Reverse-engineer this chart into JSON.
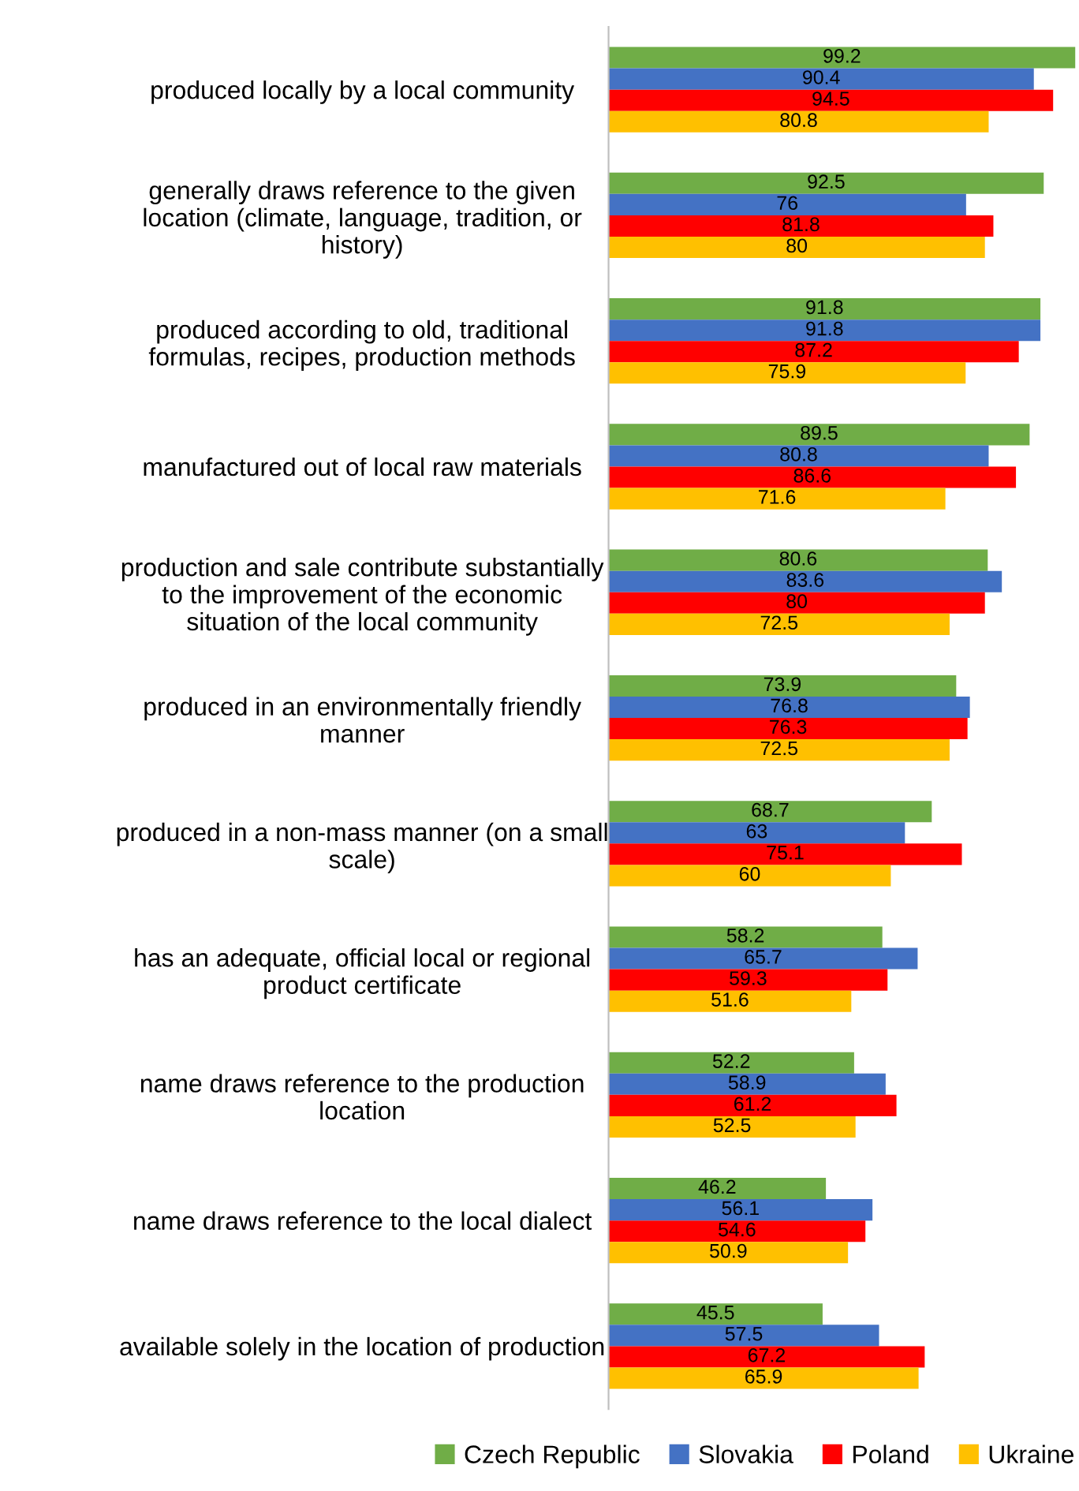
{
  "chart_data": {
    "type": "bar",
    "orientation": "horizontal",
    "categories": [
      "produced locally by a local community",
      "generally draws reference to the given\nlocation (climate, language, tradition, or\nhistory)",
      "produced according to old, traditional\nformulas, recipes, production methods",
      "manufactured out of local raw materials",
      "production and sale contribute substantially\nto the improvement of the economic\nsituation of the local community",
      "produced in an environmentally friendly\nmanner",
      "produced in a non-mass manner (on a small\nscale)",
      "has an adequate, official local or regional\nproduct certificate",
      "name draws reference to the production\nlocation",
      "name draws reference to the local dialect",
      "available solely in the location of production"
    ],
    "series": [
      {
        "name": "Czech Republic",
        "color": "#70ad47",
        "values": [
          99.2,
          92.5,
          91.8,
          89.5,
          80.6,
          73.9,
          68.7,
          58.2,
          52.2,
          46.2,
          45.5
        ]
      },
      {
        "name": "Slovakia",
        "color": "#4472c4",
        "values": [
          90.4,
          76,
          91.8,
          80.8,
          83.6,
          76.8,
          63,
          65.7,
          58.9,
          56.1,
          57.5
        ]
      },
      {
        "name": "Poland",
        "color": "#ff0000",
        "values": [
          94.5,
          81.8,
          87.2,
          86.6,
          80,
          76.3,
          75.1,
          59.3,
          61.2,
          54.6,
          67.2
        ]
      },
      {
        "name": "Ukraine",
        "color": "#ffc000",
        "values": [
          80.8,
          80,
          75.9,
          71.6,
          72.5,
          72.5,
          60,
          51.6,
          52.5,
          50.9,
          65.9
        ]
      }
    ],
    "xlim": [
      0,
      100
    ],
    "data_labels": true,
    "legend": "bottom",
    "grid": false,
    "tick_labels": "y"
  }
}
